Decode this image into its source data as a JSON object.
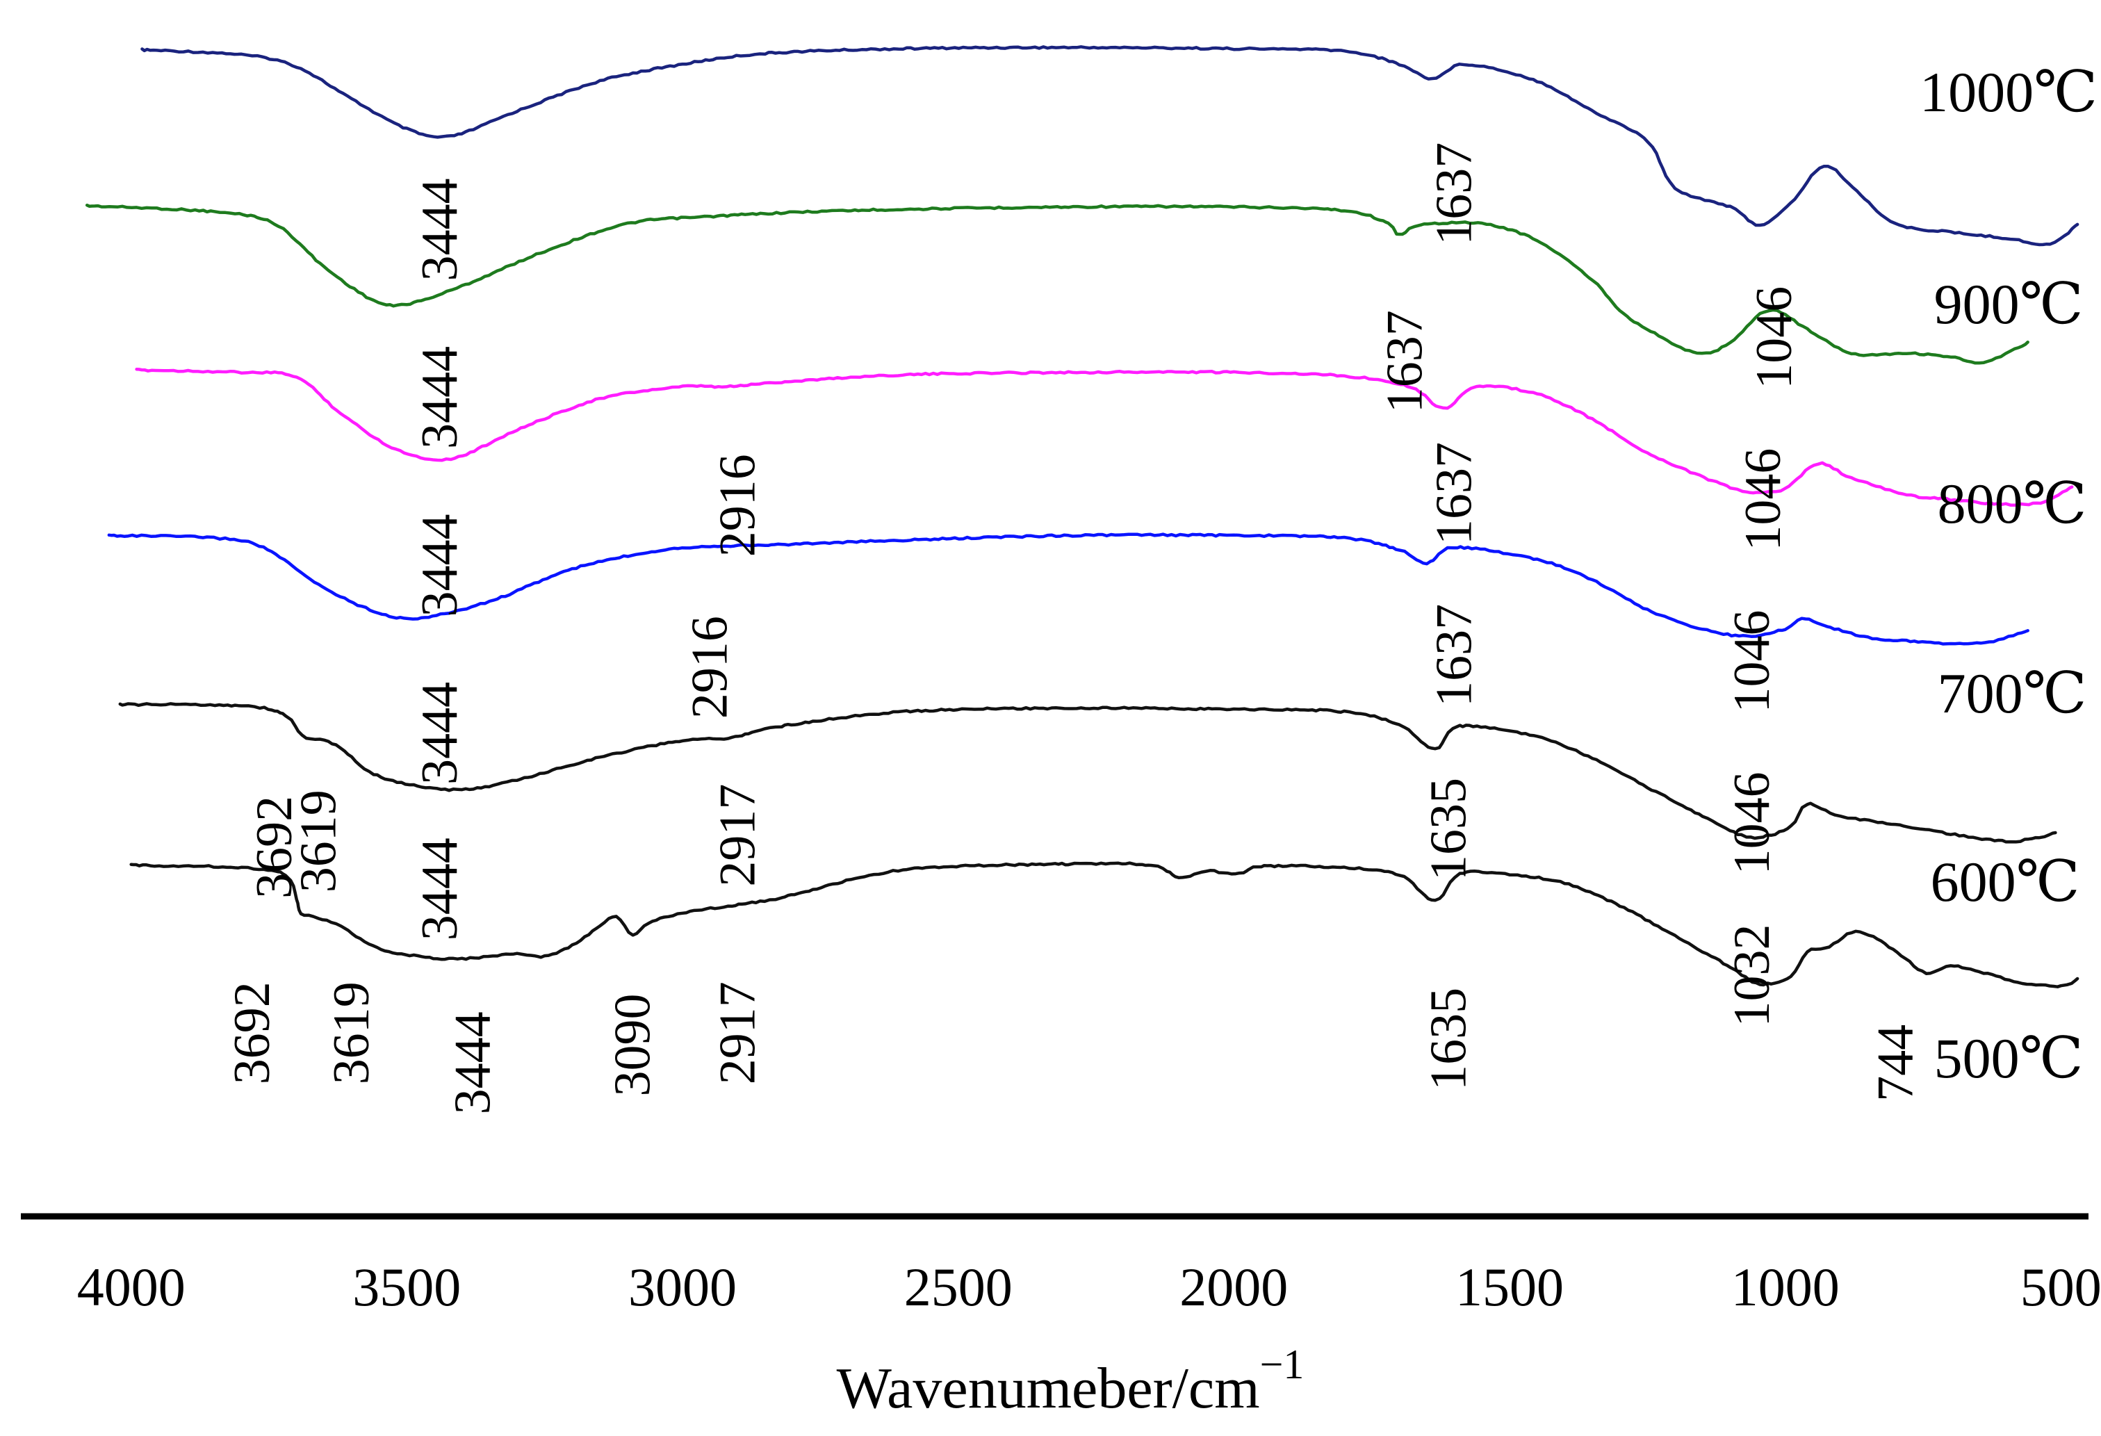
{
  "chart_data": {
    "type": "line",
    "title": "",
    "xlabel": "Wavenumeber/cm",
    "xlabel_superscript": "−1",
    "ylabel": "",
    "xlim": [
      4200,
      450
    ],
    "x_reversed": true,
    "x_ticks": [
      4000,
      3500,
      3000,
      2500,
      2000,
      1500,
      1000,
      500
    ],
    "x_tick_labels": [
      "4000",
      "3500",
      "3000",
      "2500",
      "2000",
      "1500",
      "1000",
      "500"
    ],
    "y_axis_shown": false,
    "y_units": "arbitrary transmittance (stacked, offset)",
    "ylim": [
      0,
      100
    ],
    "grid": false,
    "series": [
      {
        "name": "1000℃",
        "color": "#1a237e",
        "points": [
          [
            3980,
            97
          ],
          [
            3800,
            96.6
          ],
          [
            3700,
            95.6
          ],
          [
            3600,
            92.9
          ],
          [
            3500,
            90.4
          ],
          [
            3420,
            89.8
          ],
          [
            3300,
            91.9
          ],
          [
            3150,
            94.4
          ],
          [
            3000,
            95.8
          ],
          [
            2850,
            96.7
          ],
          [
            2600,
            97.1
          ],
          [
            2300,
            97.2
          ],
          [
            2000,
            97.1
          ],
          [
            1800,
            96.9
          ],
          [
            1700,
            95.8
          ],
          [
            1640,
            94.6
          ],
          [
            1580,
            95.8
          ],
          [
            1450,
            94.4
          ],
          [
            1350,
            91.9
          ],
          [
            1250,
            89.4
          ],
          [
            1200,
            85.5
          ],
          [
            1100,
            83.9
          ],
          [
            1046,
            82.4
          ],
          [
            990,
            84.2
          ],
          [
            930,
            87.3
          ],
          [
            870,
            85.2
          ],
          [
            800,
            82.5
          ],
          [
            700,
            81.8
          ],
          [
            600,
            81.3
          ],
          [
            520,
            80.8
          ],
          [
            470,
            82.5
          ]
        ]
      },
      {
        "name": "900℃",
        "color": "#1e7b1e",
        "points": [
          [
            4080,
            84
          ],
          [
            3850,
            83.5
          ],
          [
            3740,
            82.5
          ],
          [
            3650,
            78.9
          ],
          [
            3560,
            76.1
          ],
          [
            3500,
            75.8
          ],
          [
            3400,
            77.3
          ],
          [
            3250,
            80.2
          ],
          [
            3100,
            82.5
          ],
          [
            2950,
            83.1
          ],
          [
            2700,
            83.6
          ],
          [
            2300,
            83.9
          ],
          [
            2000,
            83.9
          ],
          [
            1800,
            83.6
          ],
          [
            1720,
            82.5
          ],
          [
            1700,
            81.6
          ],
          [
            1660,
            82.4
          ],
          [
            1550,
            82.5
          ],
          [
            1450,
            81.1
          ],
          [
            1350,
            77.8
          ],
          [
            1300,
            75.3
          ],
          [
            1250,
            73.7
          ],
          [
            1160,
            71.7
          ],
          [
            1100,
            72.6
          ],
          [
            1030,
            75.3
          ],
          [
            960,
            73.7
          ],
          [
            880,
            71.7
          ],
          [
            780,
            71.7
          ],
          [
            700,
            71.4
          ],
          [
            640,
            70.9
          ],
          [
            560,
            72.6
          ]
        ]
      },
      {
        "name": "800℃",
        "color": "#ff1dff",
        "points": [
          [
            3990,
            70.3
          ],
          [
            3800,
            70.1
          ],
          [
            3700,
            69.7
          ],
          [
            3620,
            66.7
          ],
          [
            3520,
            63.7
          ],
          [
            3420,
            62.9
          ],
          [
            3300,
            65.3
          ],
          [
            3150,
            67.9
          ],
          [
            3000,
            68.9
          ],
          [
            2920,
            68.9
          ],
          [
            2820,
            69.3
          ],
          [
            2600,
            69.9
          ],
          [
            2300,
            70.1
          ],
          [
            2000,
            70.1
          ],
          [
            1800,
            69.8
          ],
          [
            1680,
            68.9
          ],
          [
            1620,
            67.1
          ],
          [
            1560,
            68.9
          ],
          [
            1450,
            68.3
          ],
          [
            1350,
            66.2
          ],
          [
            1250,
            63.4
          ],
          [
            1100,
            60.5
          ],
          [
            1046,
            60.1
          ],
          [
            1000,
            60.4
          ],
          [
            940,
            62.5
          ],
          [
            880,
            61.3
          ],
          [
            780,
            59.9
          ],
          [
            700,
            59.5
          ],
          [
            600,
            59.1
          ],
          [
            530,
            59.3
          ],
          [
            480,
            60.6
          ]
        ]
      },
      {
        "name": "700℃",
        "color": "#0a14ff",
        "points": [
          [
            4040,
            56.5
          ],
          [
            3850,
            56.3
          ],
          [
            3760,
            55.5
          ],
          [
            3660,
            52.4
          ],
          [
            3560,
            50.2
          ],
          [
            3480,
            49.6
          ],
          [
            3350,
            51
          ],
          [
            3200,
            53.7
          ],
          [
            3050,
            55.2
          ],
          [
            2950,
            55.6
          ],
          [
            2850,
            55.7
          ],
          [
            2600,
            56.1
          ],
          [
            2300,
            56.5
          ],
          [
            2000,
            56.5
          ],
          [
            1800,
            56.3
          ],
          [
            1700,
            55.3
          ],
          [
            1650,
            54.2
          ],
          [
            1600,
            55.5
          ],
          [
            1450,
            54.5
          ],
          [
            1350,
            52.8
          ],
          [
            1250,
            50.3
          ],
          [
            1150,
            48.7
          ],
          [
            1070,
            48.1
          ],
          [
            1000,
            48.7
          ],
          [
            970,
            49.6
          ],
          [
            930,
            49
          ],
          [
            850,
            48
          ],
          [
            780,
            47.7
          ],
          [
            700,
            47.5
          ],
          [
            630,
            47.6
          ],
          [
            560,
            48.6
          ]
        ]
      },
      {
        "name": "600℃",
        "color": "#111111",
        "points": [
          [
            4020,
            42.4
          ],
          [
            3800,
            42.3
          ],
          [
            3720,
            41.5
          ],
          [
            3690,
            39.8
          ],
          [
            3650,
            39.4
          ],
          [
            3619,
            38.7
          ],
          [
            3560,
            36.6
          ],
          [
            3480,
            35.6
          ],
          [
            3400,
            35.3
          ],
          [
            3300,
            36.1
          ],
          [
            3150,
            38
          ],
          [
            3000,
            39.4
          ],
          [
            2917,
            39.6
          ],
          [
            2820,
            40.6
          ],
          [
            2600,
            41.8
          ],
          [
            2300,
            42.1
          ],
          [
            2000,
            42
          ],
          [
            1800,
            41.8
          ],
          [
            1700,
            40.7
          ],
          [
            1635,
            38.7
          ],
          [
            1590,
            40.6
          ],
          [
            1450,
            39.7
          ],
          [
            1350,
            37.9
          ],
          [
            1250,
            35.5
          ],
          [
            1150,
            33.1
          ],
          [
            1080,
            31.5
          ],
          [
            1040,
            31.4
          ],
          [
            990,
            32.2
          ],
          [
            960,
            34.1
          ],
          [
            900,
            33.1
          ],
          [
            800,
            32.4
          ],
          [
            700,
            31.6
          ],
          [
            600,
            31
          ],
          [
            540,
            31.3
          ],
          [
            510,
            31.7
          ]
        ]
      },
      {
        "name": "500℃",
        "color": "#111111",
        "points": [
          [
            4000,
            29
          ],
          [
            3800,
            28.8
          ],
          [
            3720,
            28.2
          ],
          [
            3700,
            26.2
          ],
          [
            3692,
            25
          ],
          [
            3660,
            24.6
          ],
          [
            3619,
            23.9
          ],
          [
            3560,
            22.2
          ],
          [
            3480,
            21.4
          ],
          [
            3400,
            21.2
          ],
          [
            3300,
            21.6
          ],
          [
            3250,
            21.4
          ],
          [
            3200,
            22.3
          ],
          [
            3150,
            23.9
          ],
          [
            3120,
            24.7
          ],
          [
            3090,
            23.2
          ],
          [
            3060,
            24.2
          ],
          [
            3000,
            25
          ],
          [
            2917,
            25.6
          ],
          [
            2820,
            26.3
          ],
          [
            2600,
            28.6
          ],
          [
            2300,
            29.1
          ],
          [
            2150,
            29
          ],
          [
            2100,
            28
          ],
          [
            2050,
            28.5
          ],
          [
            1990,
            28.3
          ],
          [
            1950,
            28.9
          ],
          [
            1800,
            28.8
          ],
          [
            1700,
            28.2
          ],
          [
            1635,
            26
          ],
          [
            1590,
            28.3
          ],
          [
            1500,
            28.2
          ],
          [
            1400,
            27.5
          ],
          [
            1300,
            25.6
          ],
          [
            1200,
            23.1
          ],
          [
            1100,
            20.5
          ],
          [
            1060,
            19.3
          ],
          [
            1032,
            19.1
          ],
          [
            990,
            19.7
          ],
          [
            960,
            21.8
          ],
          [
            920,
            22.2
          ],
          [
            880,
            23.4
          ],
          [
            840,
            23
          ],
          [
            790,
            21.5
          ],
          [
            744,
            20
          ],
          [
            700,
            20.6
          ],
          [
            640,
            20
          ],
          [
            570,
            19.2
          ],
          [
            500,
            18.9
          ],
          [
            470,
            19.5
          ]
        ]
      }
    ],
    "series_labels": [
      "1000℃",
      "900℃",
      "800℃",
      "700℃",
      "600℃",
      "500℃"
    ],
    "peak_annotations": [
      {
        "text": "3444",
        "x": 3440,
        "y": 82
      },
      {
        "text": "1637",
        "x": 1600,
        "y": 85
      },
      {
        "text": "1046",
        "x": 1020,
        "y": 73
      },
      {
        "text": "3444",
        "x": 3440,
        "y": 68
      },
      {
        "text": "1637",
        "x": 1690,
        "y": 71
      },
      {
        "text": "1046",
        "x": 1040,
        "y": 59.5
      },
      {
        "text": "3444",
        "x": 3440,
        "y": 54
      },
      {
        "text": "2916",
        "x": 2900,
        "y": 59
      },
      {
        "text": "1637",
        "x": 1600,
        "y": 60
      },
      {
        "text": "1046",
        "x": 1060,
        "y": 46
      },
      {
        "text": "3444",
        "x": 3440,
        "y": 40
      },
      {
        "text": "2916",
        "x": 2950,
        "y": 45.5
      },
      {
        "text": "1637",
        "x": 1600,
        "y": 46.5
      },
      {
        "text": "1046",
        "x": 1060,
        "y": 32.5
      },
      {
        "text": "3692",
        "x": 3740,
        "y": 30.5
      },
      {
        "text": "3619",
        "x": 3660,
        "y": 31
      },
      {
        "text": "3444",
        "x": 3440,
        "y": 27
      },
      {
        "text": "2917",
        "x": 2900,
        "y": 31.5
      },
      {
        "text": "1635",
        "x": 1610,
        "y": 32
      },
      {
        "text": "1032",
        "x": 1060,
        "y": 19.8
      },
      {
        "text": "3692",
        "x": 3780,
        "y": 15
      },
      {
        "text": "3619",
        "x": 3600,
        "y": 15
      },
      {
        "text": "3444",
        "x": 3380,
        "y": 12.5
      },
      {
        "text": "3090",
        "x": 3090,
        "y": 14
      },
      {
        "text": "2917",
        "x": 2900,
        "y": 15
      },
      {
        "text": "1635",
        "x": 1610,
        "y": 14.5
      },
      {
        "text": "744",
        "x": 800,
        "y": 12.5
      }
    ]
  }
}
